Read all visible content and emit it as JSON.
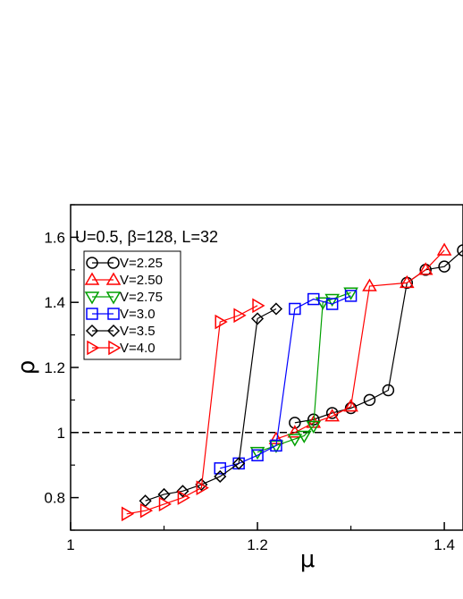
{
  "chart_data": {
    "type": "line",
    "title": "",
    "xlabel": "μ",
    "ylabel": "ρ",
    "annotation": "U=0.5, β=128, L=32",
    "xlim": [
      1.0,
      1.42
    ],
    "ylim": [
      0.7,
      1.7
    ],
    "xticks": [
      1.0,
      1.2,
      1.4
    ],
    "xtick_labels": [
      "1",
      "1.2",
      "1.4"
    ],
    "yticks": [
      0.8,
      1.0,
      1.2,
      1.4,
      1.6
    ],
    "ytick_labels": [
      "0.8",
      "1",
      "1.2",
      "1.4",
      "1.6"
    ],
    "reference_line": {
      "y": 1.0,
      "style": "dashed",
      "color": "#000000"
    },
    "legend_position": "upper-left",
    "grid": false,
    "series": [
      {
        "name": "V=2.25",
        "marker": "circle",
        "color": "#000000",
        "x": [
          1.24,
          1.26,
          1.28,
          1.3,
          1.32,
          1.34,
          1.36,
          1.38,
          1.4,
          1.42
        ],
        "y": [
          1.03,
          1.04,
          1.06,
          1.075,
          1.1,
          1.13,
          1.46,
          1.5,
          1.51,
          1.56
        ]
      },
      {
        "name": "V=2.50",
        "marker": "triangle-up",
        "color": "#ff0000",
        "x": [
          1.22,
          1.24,
          1.26,
          1.28,
          1.3,
          1.32,
          1.36,
          1.38,
          1.4
        ],
        "y": [
          0.98,
          1.0,
          1.03,
          1.05,
          1.08,
          1.45,
          1.46,
          1.5,
          1.56
        ]
      },
      {
        "name": "V=2.75",
        "marker": "triangle-down",
        "color": "#00a000",
        "x": [
          1.2,
          1.22,
          1.24,
          1.25,
          1.26,
          1.27,
          1.28,
          1.3
        ],
        "y": [
          0.94,
          0.96,
          0.98,
          0.99,
          1.02,
          1.4,
          1.41,
          1.43
        ]
      },
      {
        "name": "V=3.0",
        "marker": "square",
        "color": "#0000ff",
        "x": [
          1.16,
          1.18,
          1.2,
          1.22,
          1.24,
          1.26,
          1.28,
          1.3
        ],
        "y": [
          0.89,
          0.905,
          0.93,
          0.96,
          1.38,
          1.41,
          1.395,
          1.42
        ]
      },
      {
        "name": "V=3.5",
        "marker": "diamond",
        "color": "#000000",
        "x": [
          1.08,
          1.1,
          1.12,
          1.14,
          1.16,
          1.18,
          1.2,
          1.22
        ],
        "y": [
          0.79,
          0.81,
          0.82,
          0.84,
          0.865,
          0.905,
          1.35,
          1.38
        ]
      },
      {
        "name": "V=4.0",
        "marker": "triangle-right",
        "color": "#ff0000",
        "x": [
          1.06,
          1.08,
          1.1,
          1.12,
          1.14,
          1.16,
          1.18,
          1.2
        ],
        "y": [
          0.75,
          0.76,
          0.78,
          0.8,
          0.83,
          1.34,
          1.36,
          1.39
        ]
      }
    ]
  }
}
